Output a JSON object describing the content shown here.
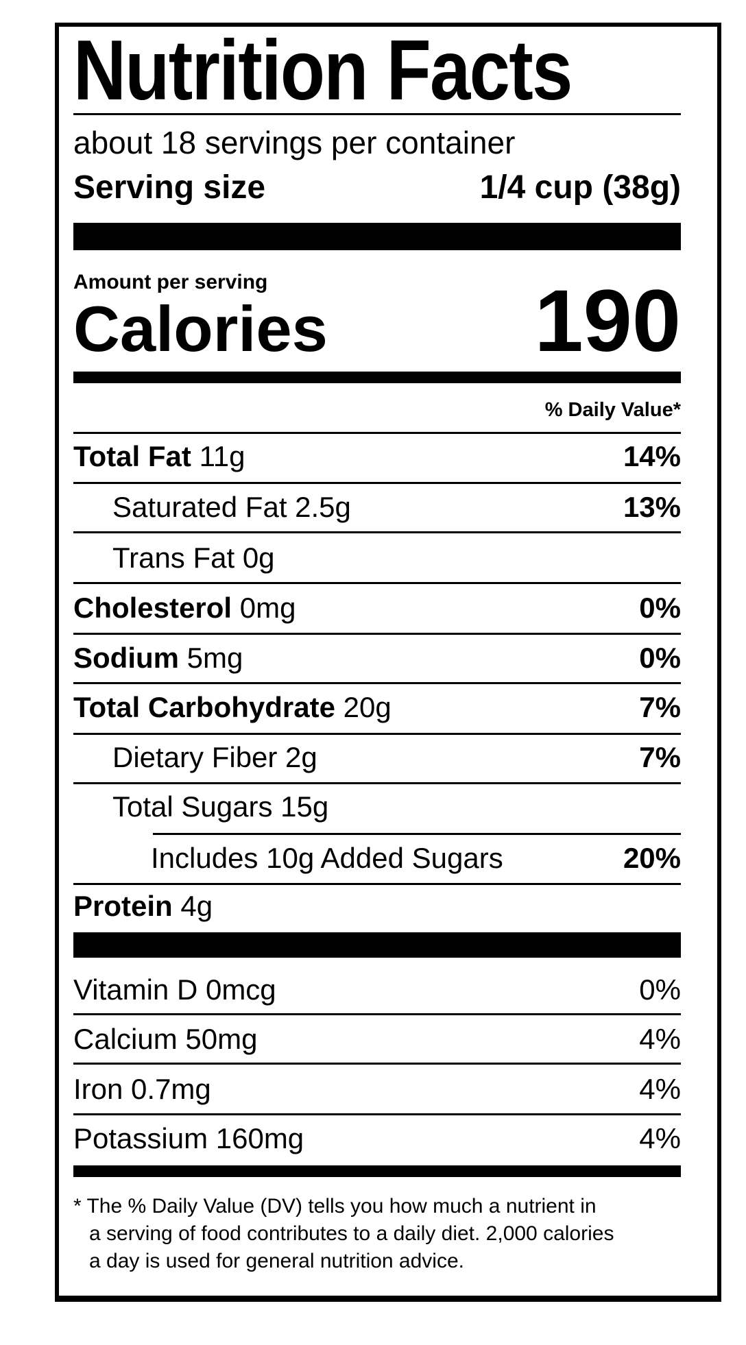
{
  "title": "Nutrition Facts",
  "servings_per_container": "about 18 servings per container",
  "serving_size": {
    "label": "Serving size",
    "value": "1/4 cup (38g)"
  },
  "amount_per_serving": "Amount per serving",
  "calories": {
    "label": "Calories",
    "value": "190"
  },
  "daily_value_header": "% Daily Value*",
  "nutrients": [
    {
      "name": "Total Fat",
      "amount": "11g",
      "dv": "14%"
    },
    {
      "name": "Saturated Fat 2.5g",
      "dv": "13%"
    },
    {
      "name": "Trans Fat 0g"
    },
    {
      "name": "Cholesterol",
      "amount": "0mg",
      "dv": "0%"
    },
    {
      "name": "Sodium",
      "amount": "5mg",
      "dv": "0%"
    },
    {
      "name": "Total Carbohydrate",
      "amount": "20g",
      "dv": "7%"
    },
    {
      "name": "Dietary Fiber 2g",
      "dv": "7%"
    },
    {
      "name": "Total Sugars 15g"
    },
    {
      "name": "Includes 10g Added Sugars",
      "dv": "20%"
    },
    {
      "name": "Protein",
      "amount": "4g"
    }
  ],
  "vitamins": [
    {
      "name": "Vitamin D 0mcg",
      "dv": "0%"
    },
    {
      "name": "Calcium 50mg",
      "dv": "4%"
    },
    {
      "name": "Iron 0.7mg",
      "dv": "4%"
    },
    {
      "name": "Potassium 160mg",
      "dv": "4%"
    }
  ],
  "footnote": [
    "* The % Daily Value (DV) tells you how much a nutrient in",
    "a serving of food contributes to a daily diet. 2,000 calories",
    "a day is used for general nutrition advice."
  ]
}
